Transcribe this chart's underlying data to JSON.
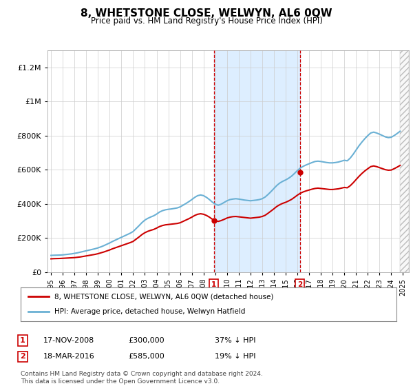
{
  "title": "8, WHETSTONE CLOSE, WELWYN, AL6 0QW",
  "subtitle": "Price paid vs. HM Land Registry's House Price Index (HPI)",
  "ylim": [
    0,
    1300000
  ],
  "yticks": [
    0,
    200000,
    400000,
    600000,
    800000,
    1000000,
    1200000
  ],
  "xlim_start": 1994.7,
  "xlim_end": 2025.5,
  "sale1_x": 2008.88,
  "sale1_y": 300000,
  "sale1_label": "1",
  "sale2_x": 2016.21,
  "sale2_y": 585000,
  "sale2_label": "2",
  "shading_x1": 2008.88,
  "shading_x2": 2016.21,
  "hpi_color": "#6ab0d4",
  "price_color": "#cc0000",
  "marker_box_color": "#cc0000",
  "grid_color": "#cccccc",
  "background_color": "#ffffff",
  "shading_color": "#ddeeff",
  "legend_line1": "8, WHETSTONE CLOSE, WELWYN, AL6 0QW (detached house)",
  "legend_line2": "HPI: Average price, detached house, Welwyn Hatfield",
  "note1_label": "1",
  "note1_date": "17-NOV-2008",
  "note1_price": "£300,000",
  "note1_pct": "37% ↓ HPI",
  "note2_label": "2",
  "note2_date": "18-MAR-2016",
  "note2_price": "£585,000",
  "note2_pct": "19% ↓ HPI",
  "footer": "Contains HM Land Registry data © Crown copyright and database right 2024.\nThis data is licensed under the Open Government Licence v3.0.",
  "hpi_data": [
    [
      1995.0,
      98000
    ],
    [
      1995.25,
      99000
    ],
    [
      1995.5,
      99500
    ],
    [
      1995.75,
      100000
    ],
    [
      1996.0,
      101000
    ],
    [
      1996.25,
      103000
    ],
    [
      1996.5,
      105000
    ],
    [
      1996.75,
      107000
    ],
    [
      1997.0,
      110000
    ],
    [
      1997.25,
      113000
    ],
    [
      1997.5,
      117000
    ],
    [
      1997.75,
      121000
    ],
    [
      1998.0,
      125000
    ],
    [
      1998.25,
      129000
    ],
    [
      1998.5,
      133000
    ],
    [
      1998.75,
      137000
    ],
    [
      1999.0,
      142000
    ],
    [
      1999.25,
      148000
    ],
    [
      1999.5,
      155000
    ],
    [
      1999.75,
      163000
    ],
    [
      2000.0,
      171000
    ],
    [
      2000.25,
      180000
    ],
    [
      2000.5,
      188000
    ],
    [
      2000.75,
      196000
    ],
    [
      2001.0,
      204000
    ],
    [
      2001.25,
      212000
    ],
    [
      2001.5,
      220000
    ],
    [
      2001.75,
      228000
    ],
    [
      2002.0,
      238000
    ],
    [
      2002.25,
      255000
    ],
    [
      2002.5,
      272000
    ],
    [
      2002.75,
      290000
    ],
    [
      2003.0,
      305000
    ],
    [
      2003.25,
      315000
    ],
    [
      2003.5,
      323000
    ],
    [
      2003.75,
      330000
    ],
    [
      2004.0,
      340000
    ],
    [
      2004.25,
      352000
    ],
    [
      2004.5,
      360000
    ],
    [
      2004.75,
      365000
    ],
    [
      2005.0,
      368000
    ],
    [
      2005.25,
      370000
    ],
    [
      2005.5,
      373000
    ],
    [
      2005.75,
      376000
    ],
    [
      2006.0,
      382000
    ],
    [
      2006.25,
      392000
    ],
    [
      2006.5,
      402000
    ],
    [
      2006.75,
      413000
    ],
    [
      2007.0,
      425000
    ],
    [
      2007.25,
      438000
    ],
    [
      2007.5,
      448000
    ],
    [
      2007.75,
      452000
    ],
    [
      2008.0,
      448000
    ],
    [
      2008.25,
      438000
    ],
    [
      2008.5,
      425000
    ],
    [
      2008.75,
      410000
    ],
    [
      2009.0,
      398000
    ],
    [
      2009.25,
      392000
    ],
    [
      2009.5,
      398000
    ],
    [
      2009.75,
      408000
    ],
    [
      2010.0,
      418000
    ],
    [
      2010.25,
      425000
    ],
    [
      2010.5,
      428000
    ],
    [
      2010.75,
      430000
    ],
    [
      2011.0,
      428000
    ],
    [
      2011.25,
      425000
    ],
    [
      2011.5,
      422000
    ],
    [
      2011.75,
      420000
    ],
    [
      2012.0,
      418000
    ],
    [
      2012.25,
      420000
    ],
    [
      2012.5,
      422000
    ],
    [
      2012.75,
      425000
    ],
    [
      2013.0,
      430000
    ],
    [
      2013.25,
      440000
    ],
    [
      2013.5,
      455000
    ],
    [
      2013.75,
      472000
    ],
    [
      2014.0,
      490000
    ],
    [
      2014.25,
      508000
    ],
    [
      2014.5,
      522000
    ],
    [
      2014.75,
      532000
    ],
    [
      2015.0,
      540000
    ],
    [
      2015.25,
      550000
    ],
    [
      2015.5,
      562000
    ],
    [
      2015.75,
      578000
    ],
    [
      2016.0,
      595000
    ],
    [
      2016.25,
      610000
    ],
    [
      2016.5,
      620000
    ],
    [
      2016.75,
      628000
    ],
    [
      2017.0,
      635000
    ],
    [
      2017.25,
      642000
    ],
    [
      2017.5,
      648000
    ],
    [
      2017.75,
      650000
    ],
    [
      2018.0,
      648000
    ],
    [
      2018.25,
      645000
    ],
    [
      2018.5,
      642000
    ],
    [
      2018.75,
      640000
    ],
    [
      2019.0,
      640000
    ],
    [
      2019.25,
      642000
    ],
    [
      2019.5,
      645000
    ],
    [
      2019.75,
      650000
    ],
    [
      2020.0,
      655000
    ],
    [
      2020.25,
      652000
    ],
    [
      2020.5,
      668000
    ],
    [
      2020.75,
      690000
    ],
    [
      2021.0,
      715000
    ],
    [
      2021.25,
      740000
    ],
    [
      2021.5,
      762000
    ],
    [
      2021.75,
      782000
    ],
    [
      2022.0,
      800000
    ],
    [
      2022.25,
      815000
    ],
    [
      2022.5,
      820000
    ],
    [
      2022.75,
      815000
    ],
    [
      2023.0,
      808000
    ],
    [
      2023.25,
      800000
    ],
    [
      2023.5,
      792000
    ],
    [
      2023.75,
      788000
    ],
    [
      2024.0,
      790000
    ],
    [
      2024.25,
      800000
    ],
    [
      2024.5,
      812000
    ],
    [
      2024.75,
      825000
    ]
  ],
  "price_data": [
    [
      1995.0,
      78000
    ],
    [
      1995.25,
      79000
    ],
    [
      1995.5,
      79500
    ],
    [
      1995.75,
      80000
    ],
    [
      1996.0,
      81000
    ],
    [
      1996.25,
      82000
    ],
    [
      1996.5,
      83000
    ],
    [
      1996.75,
      84000
    ],
    [
      1997.0,
      85000
    ],
    [
      1997.25,
      87000
    ],
    [
      1997.5,
      89000
    ],
    [
      1997.75,
      92000
    ],
    [
      1998.0,
      95000
    ],
    [
      1998.25,
      98000
    ],
    [
      1998.5,
      101000
    ],
    [
      1998.75,
      104000
    ],
    [
      1999.0,
      108000
    ],
    [
      1999.25,
      113000
    ],
    [
      1999.5,
      118000
    ],
    [
      1999.75,
      124000
    ],
    [
      2000.0,
      130000
    ],
    [
      2000.25,
      137000
    ],
    [
      2000.5,
      143000
    ],
    [
      2000.75,
      149000
    ],
    [
      2001.0,
      155000
    ],
    [
      2001.25,
      161000
    ],
    [
      2001.5,
      167000
    ],
    [
      2001.75,
      173000
    ],
    [
      2002.0,
      180000
    ],
    [
      2002.25,
      193000
    ],
    [
      2002.5,
      206000
    ],
    [
      2002.75,
      220000
    ],
    [
      2003.0,
      231000
    ],
    [
      2003.25,
      239000
    ],
    [
      2003.5,
      245000
    ],
    [
      2003.75,
      250000
    ],
    [
      2004.0,
      258000
    ],
    [
      2004.25,
      267000
    ],
    [
      2004.5,
      273000
    ],
    [
      2004.75,
      277000
    ],
    [
      2005.0,
      279000
    ],
    [
      2005.25,
      281000
    ],
    [
      2005.5,
      283000
    ],
    [
      2005.75,
      285000
    ],
    [
      2006.0,
      289000
    ],
    [
      2006.25,
      297000
    ],
    [
      2006.5,
      305000
    ],
    [
      2006.75,
      313000
    ],
    [
      2007.0,
      322000
    ],
    [
      2007.25,
      332000
    ],
    [
      2007.5,
      339000
    ],
    [
      2007.75,
      342000
    ],
    [
      2008.0,
      339000
    ],
    [
      2008.25,
      332000
    ],
    [
      2008.5,
      322000
    ],
    [
      2008.75,
      310000
    ],
    [
      2009.0,
      302000
    ],
    [
      2009.25,
      297000
    ],
    [
      2009.5,
      302000
    ],
    [
      2009.75,
      309000
    ],
    [
      2010.0,
      317000
    ],
    [
      2010.25,
      322000
    ],
    [
      2010.5,
      325000
    ],
    [
      2010.75,
      326000
    ],
    [
      2011.0,
      324000
    ],
    [
      2011.25,
      322000
    ],
    [
      2011.5,
      320000
    ],
    [
      2011.75,
      318000
    ],
    [
      2012.0,
      316000
    ],
    [
      2012.25,
      318000
    ],
    [
      2012.5,
      320000
    ],
    [
      2012.75,
      322000
    ],
    [
      2013.0,
      326000
    ],
    [
      2013.25,
      333000
    ],
    [
      2013.5,
      345000
    ],
    [
      2013.75,
      358000
    ],
    [
      2014.0,
      371000
    ],
    [
      2014.25,
      385000
    ],
    [
      2014.5,
      395000
    ],
    [
      2014.75,
      403000
    ],
    [
      2015.0,
      409000
    ],
    [
      2015.25,
      417000
    ],
    [
      2015.5,
      426000
    ],
    [
      2015.75,
      438000
    ],
    [
      2016.0,
      451000
    ],
    [
      2016.25,
      462000
    ],
    [
      2016.5,
      470000
    ],
    [
      2016.75,
      476000
    ],
    [
      2017.0,
      481000
    ],
    [
      2017.25,
      486000
    ],
    [
      2017.5,
      490000
    ],
    [
      2017.75,
      492000
    ],
    [
      2018.0,
      490000
    ],
    [
      2018.25,
      488000
    ],
    [
      2018.5,
      486000
    ],
    [
      2018.75,
      484000
    ],
    [
      2019.0,
      484000
    ],
    [
      2019.25,
      486000
    ],
    [
      2019.5,
      488000
    ],
    [
      2019.75,
      492000
    ],
    [
      2020.0,
      496000
    ],
    [
      2020.25,
      494000
    ],
    [
      2020.5,
      506000
    ],
    [
      2020.75,
      523000
    ],
    [
      2021.0,
      542000
    ],
    [
      2021.25,
      561000
    ],
    [
      2021.5,
      578000
    ],
    [
      2021.75,
      593000
    ],
    [
      2022.0,
      606000
    ],
    [
      2022.25,
      618000
    ],
    [
      2022.5,
      622000
    ],
    [
      2022.75,
      618000
    ],
    [
      2023.0,
      612000
    ],
    [
      2023.25,
      606000
    ],
    [
      2023.5,
      600000
    ],
    [
      2023.75,
      597000
    ],
    [
      2024.0,
      598000
    ],
    [
      2024.25,
      606000
    ],
    [
      2024.5,
      615000
    ],
    [
      2024.75,
      625000
    ]
  ]
}
